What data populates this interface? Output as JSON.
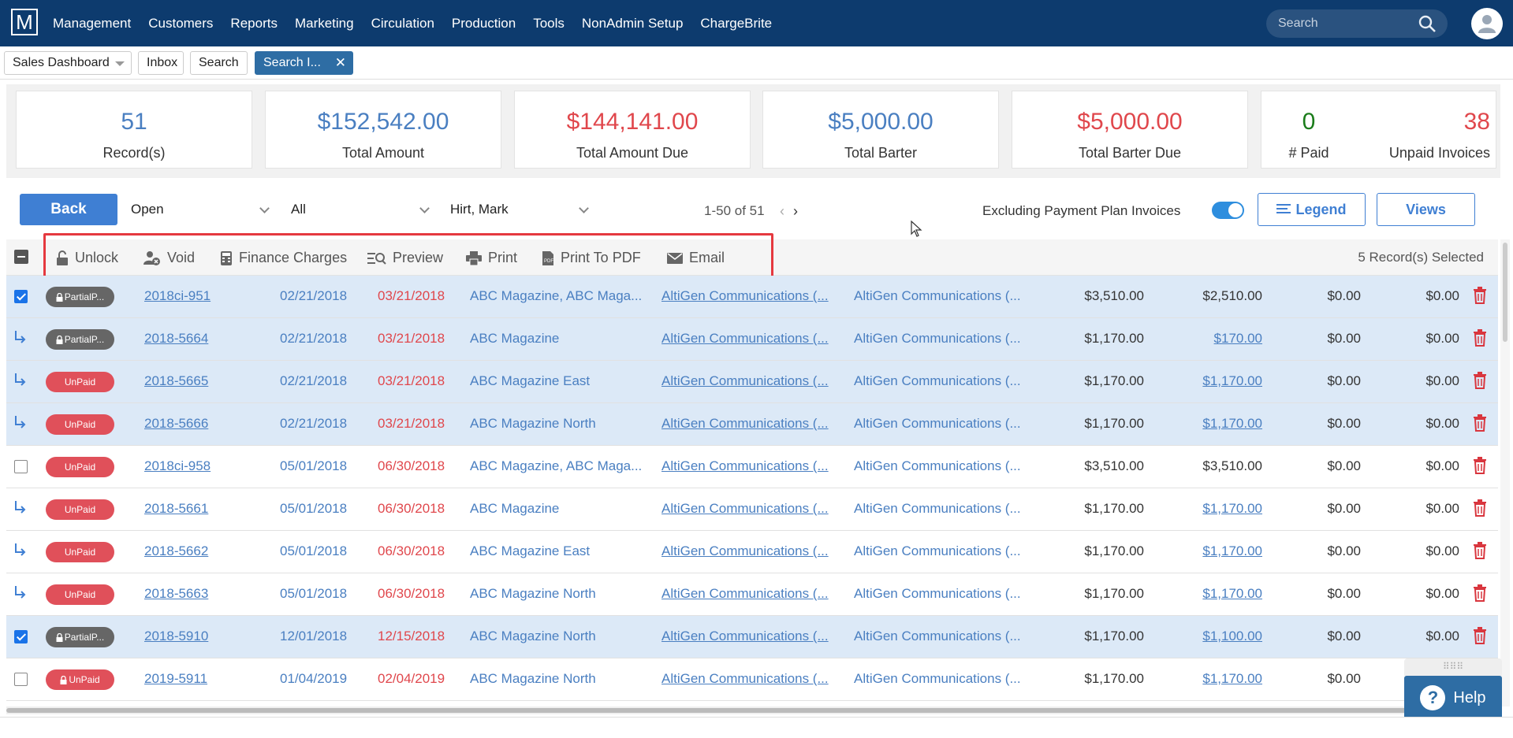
{
  "nav": {
    "logo": "M",
    "menu": [
      "Management",
      "Customers",
      "Reports",
      "Marketing",
      "Circulation",
      "Production",
      "Tools",
      "NonAdmin Setup",
      "ChargeBrite"
    ],
    "search_placeholder": "Search"
  },
  "tabs": {
    "dashboard": "Sales Dashboard",
    "inbox": "Inbox",
    "search": "Search",
    "active": "Search I...",
    "close": "✕"
  },
  "stats": {
    "records": {
      "value": "51",
      "label": "Record(s)"
    },
    "total_amount": {
      "value": "$152,542.00",
      "label": "Total Amount"
    },
    "total_due": {
      "value": "$144,141.00",
      "label": "Total Amount Due"
    },
    "total_barter": {
      "value": "$5,000.00",
      "label": "Total Barter"
    },
    "barter_due": {
      "value": "$5,000.00",
      "label": "Total Barter Due"
    },
    "paid": {
      "value": "0",
      "label": "# Paid"
    },
    "unpaid": {
      "value": "38",
      "label": "Unpaid Invoices"
    }
  },
  "filters": {
    "back": "Back",
    "status": "Open",
    "type": "All",
    "rep": "Hirt, Mark",
    "pager": "1-50 of 51",
    "exclude_label": "Excluding Payment Plan Invoices",
    "legend": "Legend",
    "views": "Views"
  },
  "actions": {
    "unlock": "Unlock",
    "void": "Void",
    "finance": "Finance Charges",
    "preview": "Preview",
    "print": "Print",
    "pdf": "Print To PDF",
    "email": "Email",
    "selected": "5 Record(s) Selected"
  },
  "rows": [
    {
      "status": "PartialP...",
      "invoice": "2018ci-951",
      "date1": "02/21/2018",
      "date2": "03/21/2018",
      "publication": "ABC Magazine, ABC Maga...",
      "advertiser": "AltiGen Communications (...",
      "agency": "AltiGen Communications (...",
      "amount": "$3,510.00",
      "due": "$2,510.00",
      "barter": "$0.00",
      "barter_due": "$0.00"
    },
    {
      "status": "PartialP...",
      "invoice": "2018-5664",
      "date1": "02/21/2018",
      "date2": "03/21/2018",
      "publication": "ABC Magazine",
      "advertiser": "AltiGen Communications (...",
      "agency": "AltiGen Communications (...",
      "amount": "$1,170.00",
      "due": "$170.00",
      "barter": "$0.00",
      "barter_due": "$0.00"
    },
    {
      "status": "UnPaid",
      "invoice": "2018-5665",
      "date1": "02/21/2018",
      "date2": "03/21/2018",
      "publication": "ABC Magazine East",
      "advertiser": "AltiGen Communications (...",
      "agency": "AltiGen Communications (...",
      "amount": "$1,170.00",
      "due": "$1,170.00",
      "barter": "$0.00",
      "barter_due": "$0.00"
    },
    {
      "status": "UnPaid",
      "invoice": "2018-5666",
      "date1": "02/21/2018",
      "date2": "03/21/2018",
      "publication": "ABC Magazine North",
      "advertiser": "AltiGen Communications (...",
      "agency": "AltiGen Communications (...",
      "amount": "$1,170.00",
      "due": "$1,170.00",
      "barter": "$0.00",
      "barter_due": "$0.00"
    },
    {
      "status": "UnPaid",
      "invoice": "2018ci-958",
      "date1": "05/01/2018",
      "date2": "06/30/2018",
      "publication": "ABC Magazine, ABC Maga...",
      "advertiser": "AltiGen Communications (...",
      "agency": "AltiGen Communications (...",
      "amount": "$3,510.00",
      "due": "$3,510.00",
      "barter": "$0.00",
      "barter_due": "$0.00"
    },
    {
      "status": "UnPaid",
      "invoice": "2018-5661",
      "date1": "05/01/2018",
      "date2": "06/30/2018",
      "publication": "ABC Magazine",
      "advertiser": "AltiGen Communications (...",
      "agency": "AltiGen Communications (...",
      "amount": "$1,170.00",
      "due": "$1,170.00",
      "barter": "$0.00",
      "barter_due": "$0.00"
    },
    {
      "status": "UnPaid",
      "invoice": "2018-5662",
      "date1": "05/01/2018",
      "date2": "06/30/2018",
      "publication": "ABC Magazine East",
      "advertiser": "AltiGen Communications (...",
      "agency": "AltiGen Communications (...",
      "amount": "$1,170.00",
      "due": "$1,170.00",
      "barter": "$0.00",
      "barter_due": "$0.00"
    },
    {
      "status": "UnPaid",
      "invoice": "2018-5663",
      "date1": "05/01/2018",
      "date2": "06/30/2018",
      "publication": "ABC Magazine North",
      "advertiser": "AltiGen Communications (...",
      "agency": "AltiGen Communications (...",
      "amount": "$1,170.00",
      "due": "$1,170.00",
      "barter": "$0.00",
      "barter_due": "$0.00"
    },
    {
      "status": "PartialP...",
      "invoice": "2018-5910",
      "date1": "12/01/2018",
      "date2": "12/15/2018",
      "publication": "ABC Magazine North",
      "advertiser": "AltiGen Communications (...",
      "agency": "AltiGen Communications (...",
      "amount": "$1,170.00",
      "due": "$1,100.00",
      "barter": "$0.00",
      "barter_due": "$0.00"
    },
    {
      "status": "UnPaid",
      "invoice": "2019-5911",
      "date1": "01/04/2019",
      "date2": "02/04/2019",
      "publication": "ABC Magazine North",
      "advertiser": "AltiGen Communications (...",
      "agency": "AltiGen Communications (...",
      "amount": "$1,170.00",
      "due": "$1,170.00",
      "barter": "$0.00",
      "barter_due": ""
    }
  ],
  "help": {
    "label": "Help",
    "mark": "?",
    "grip": "⠿⠿⠿"
  }
}
